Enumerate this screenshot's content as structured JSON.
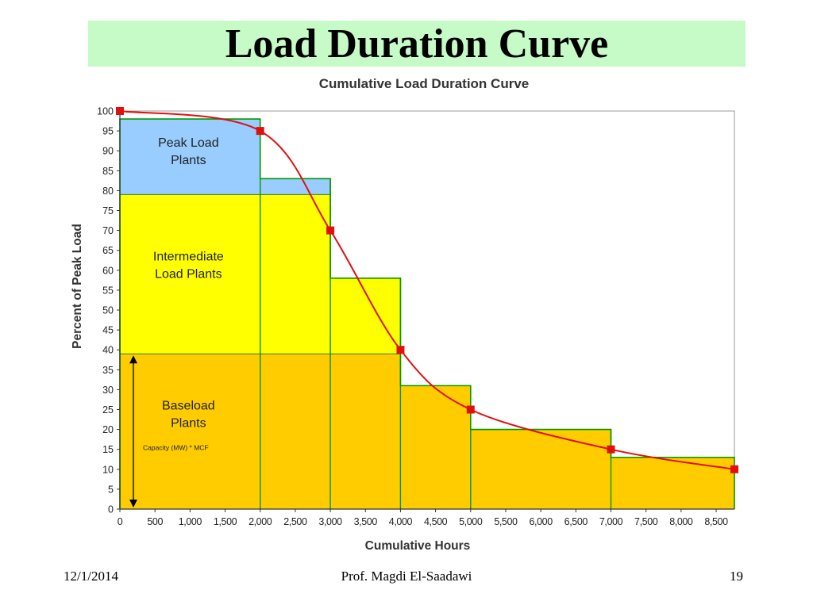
{
  "slide": {
    "title": "Load Duration Curve",
    "footer_date": "12/1/2014",
    "footer_author": "Prof. Magdi El-Saadawi",
    "page_number": "19"
  },
  "colors": {
    "title_bar": "#c6fac6",
    "peak": "#99ccff",
    "intermediate": "#ffff00",
    "baseload": "#ffcc00",
    "step_outline": "#009900",
    "curve": "#e01010"
  },
  "chart_data": {
    "type": "line",
    "title": "Cumulative Load Duration Curve",
    "xlabel": "Cumulative Hours",
    "ylabel": "Percent of Peak Load",
    "xlim": [
      0,
      8760
    ],
    "ylim": [
      0,
      100
    ],
    "x_ticks": [
      0,
      500,
      1000,
      1500,
      2000,
      2500,
      3000,
      3500,
      4000,
      4500,
      5000,
      5500,
      6000,
      6500,
      7000,
      7500,
      8000,
      8500
    ],
    "x_tick_labels": [
      "0",
      "500",
      "1,000",
      "1,500",
      "2,000",
      "2,500",
      "3,000",
      "3,500",
      "4,000",
      "4,500",
      "5,000",
      "5,500",
      "6,000",
      "6,500",
      "7,000",
      "7,500",
      "8,000",
      "8,500"
    ],
    "y_ticks": [
      0,
      5,
      10,
      15,
      20,
      25,
      30,
      35,
      40,
      45,
      50,
      55,
      60,
      65,
      70,
      75,
      80,
      85,
      90,
      95,
      100
    ],
    "grid": false,
    "curve_points": [
      {
        "x": 0,
        "y": 100
      },
      {
        "x": 2000,
        "y": 95
      },
      {
        "x": 3000,
        "y": 70
      },
      {
        "x": 4000,
        "y": 40
      },
      {
        "x": 5000,
        "y": 25
      },
      {
        "x": 7000,
        "y": 15
      },
      {
        "x": 8760,
        "y": 10
      }
    ],
    "steps": [
      {
        "x0": 0,
        "x1": 2000,
        "y": 98
      },
      {
        "x0": 2000,
        "x1": 3000,
        "y": 83
      },
      {
        "x0": 3000,
        "x1": 4000,
        "y": 58
      },
      {
        "x0": 4000,
        "x1": 5000,
        "y": 31
      },
      {
        "x0": 5000,
        "x1": 7000,
        "y": 20
      },
      {
        "x0": 7000,
        "x1": 8760,
        "y": 13
      }
    ],
    "bands": [
      {
        "name": "baseload",
        "y0": 0,
        "y1": 39
      },
      {
        "name": "intermediate",
        "y0": 39,
        "y1": 79
      },
      {
        "name": "peak",
        "y0": 79,
        "y1": 100
      }
    ],
    "annotations": {
      "peak": [
        "Peak Load",
        "Plants"
      ],
      "intermediate": [
        "Intermediate",
        "Load Plants"
      ],
      "baseload": [
        "Baseload",
        "Plants"
      ],
      "capacity_formula": "Capacity (MW) * MCF"
    }
  }
}
